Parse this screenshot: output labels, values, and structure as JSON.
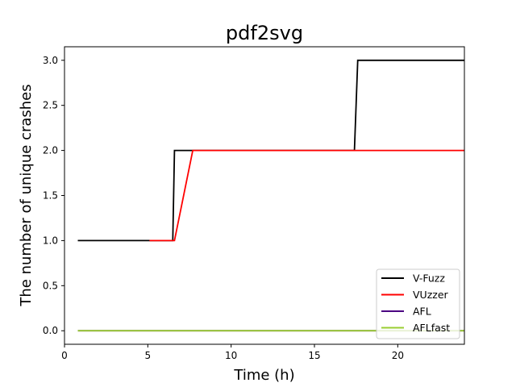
{
  "chart_data": {
    "type": "line",
    "title": "pdf2svg",
    "xlabel": "Time (h)",
    "ylabel": "The number of unique crashes",
    "xlim": [
      0,
      24
    ],
    "ylim": [
      -0.15,
      3.15
    ],
    "xticks": [
      0,
      5,
      10,
      15,
      20
    ],
    "yticks": [
      0.0,
      0.5,
      1.0,
      1.5,
      2.0,
      2.5,
      3.0
    ],
    "ytick_labels": [
      "0.0",
      "0.5",
      "1.0",
      "1.5",
      "2.0",
      "2.5",
      "3.0"
    ],
    "grid": false,
    "legend_position": "lower-right",
    "series": [
      {
        "name": "V-Fuzz",
        "color": "#000000",
        "x": [
          0.8,
          6.5,
          6.6,
          17.4,
          17.6,
          24
        ],
        "y": [
          1,
          1,
          2,
          2,
          3,
          3
        ]
      },
      {
        "name": "VUzzer",
        "color": "#ff0000",
        "x": [
          5.1,
          6.6,
          7.7,
          24
        ],
        "y": [
          1,
          1,
          2,
          2
        ]
      },
      {
        "name": "AFL",
        "color": "#4b0082",
        "x": [
          0.8,
          24
        ],
        "y": [
          0,
          0
        ]
      },
      {
        "name": "AFLfast",
        "color": "#9acd32",
        "x": [
          0.8,
          24
        ],
        "y": [
          0,
          0
        ]
      }
    ]
  }
}
